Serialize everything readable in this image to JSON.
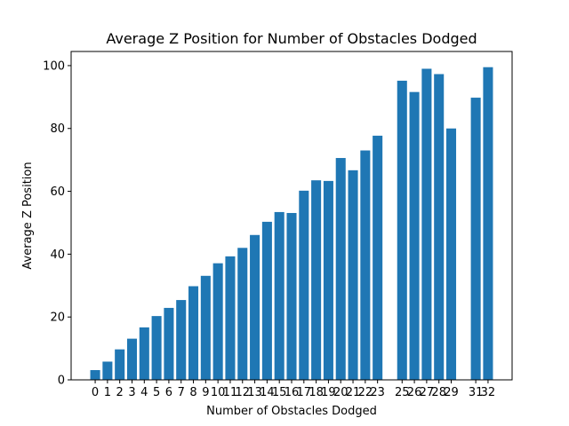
{
  "chart_data": {
    "type": "bar",
    "title": "Average Z Position for Number of Obstacles Dodged",
    "xlabel": "Number of Obstacles Dodged",
    "ylabel": "Average Z Position",
    "x": [
      0,
      1,
      2,
      3,
      4,
      5,
      6,
      7,
      8,
      9,
      10,
      11,
      12,
      13,
      14,
      15,
      16,
      17,
      18,
      19,
      20,
      21,
      22,
      23,
      25,
      26,
      27,
      28,
      29,
      31,
      32
    ],
    "values": [
      3.1,
      5.8,
      9.7,
      13.1,
      16.7,
      20.3,
      22.9,
      25.4,
      29.8,
      33.1,
      37.1,
      39.3,
      42.0,
      46.1,
      50.3,
      53.4,
      53.1,
      60.2,
      63.5,
      63.3,
      70.6,
      66.7,
      73.0,
      77.7,
      95.2,
      91.6,
      99.0,
      97.3,
      80.0,
      89.8,
      99.5
    ],
    "xticks": [
      "0",
      "1",
      "2",
      "3",
      "4",
      "5",
      "6",
      "7",
      "8",
      "9",
      "10",
      "11",
      "12",
      "13",
      "14",
      "15",
      "16",
      "17",
      "18",
      "19",
      "20",
      "21",
      "22",
      "23",
      "25",
      "26",
      "27",
      "28",
      "29",
      "31",
      "32"
    ],
    "ylim": [
      0,
      104.5
    ],
    "yticks": [
      0,
      20,
      40,
      60,
      80,
      100
    ],
    "bar_color": "#1f77b4",
    "grid": false,
    "legend": "none"
  }
}
